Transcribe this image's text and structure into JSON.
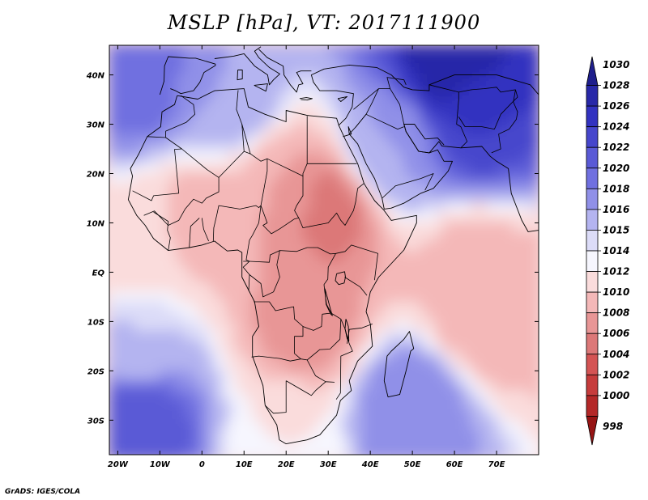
{
  "title": "MSLP [hPa], VT: 2017111900",
  "credit": "GrADS: IGES/COLA",
  "map": {
    "projection": "latlon",
    "lon_range": [
      -22,
      80
    ],
    "lat_range": [
      -37,
      46
    ],
    "lon_ticks": [
      {
        "lon": -20,
        "label": "20W"
      },
      {
        "lon": -10,
        "label": "10W"
      },
      {
        "lon": 0,
        "label": "0"
      },
      {
        "lon": 10,
        "label": "10E"
      },
      {
        "lon": 20,
        "label": "20E"
      },
      {
        "lon": 30,
        "label": "30E"
      },
      {
        "lon": 40,
        "label": "40E"
      },
      {
        "lon": 50,
        "label": "50E"
      },
      {
        "lon": 60,
        "label": "60E"
      },
      {
        "lon": 70,
        "label": "70E"
      }
    ],
    "lat_ticks": [
      {
        "lat": 40,
        "label": "40N"
      },
      {
        "lat": 30,
        "label": "30N"
      },
      {
        "lat": 20,
        "label": "20N"
      },
      {
        "lat": 10,
        "label": "10N"
      },
      {
        "lat": 0,
        "label": "EQ"
      },
      {
        "lat": -10,
        "label": "10S"
      },
      {
        "lat": -20,
        "label": "20S"
      },
      {
        "lat": -30,
        "label": "30S"
      }
    ],
    "pressure_field_hPa": [
      {
        "lon": -15,
        "lat": 40,
        "value": 1022
      },
      {
        "lon": 5,
        "lat": 36,
        "value": 1018
      },
      {
        "lon": 60,
        "lat": 42,
        "value": 1030
      },
      {
        "lon": 65,
        "lat": 32,
        "value": 1026
      },
      {
        "lon": 45,
        "lat": 25,
        "value": 1018
      },
      {
        "lon": 30,
        "lat": 12,
        "value": 1007
      },
      {
        "lon": 20,
        "lat": 15,
        "value": 1010
      },
      {
        "lon": 0,
        "lat": 10,
        "value": 1011
      },
      {
        "lon": -15,
        "lat": 5,
        "value": 1013
      },
      {
        "lon": 25,
        "lat": -10,
        "value": 1009
      },
      {
        "lon": 65,
        "lat": 0,
        "value": 1011
      },
      {
        "lon": 68,
        "lat": -8,
        "value": 1010
      },
      {
        "lon": -15,
        "lat": -15,
        "value": 1016
      },
      {
        "lon": -15,
        "lat": -30,
        "value": 1024
      },
      {
        "lon": 50,
        "lat": -28,
        "value": 1020
      },
      {
        "lon": 20,
        "lat": -35,
        "value": 1014
      }
    ]
  },
  "colorbar": {
    "levels": [
      "1030",
      "1028",
      "1026",
      "1024",
      "1022",
      "1020",
      "1018",
      "1016",
      "1015",
      "1014",
      "1012",
      "1010",
      "1008",
      "1006",
      "1004",
      "1002",
      "1000",
      "998"
    ],
    "colors": [
      "#1e1e8c",
      "#2828a8",
      "#3232c0",
      "#4646cc",
      "#5a5ad6",
      "#7070e0",
      "#9090e8",
      "#b4b4f0",
      "#dcdcf8",
      "#f6f6fe",
      "#fadcdc",
      "#f4b8b8",
      "#e89696",
      "#dc7878",
      "#d45454",
      "#c63c3c",
      "#b42828",
      "#961414"
    ]
  }
}
